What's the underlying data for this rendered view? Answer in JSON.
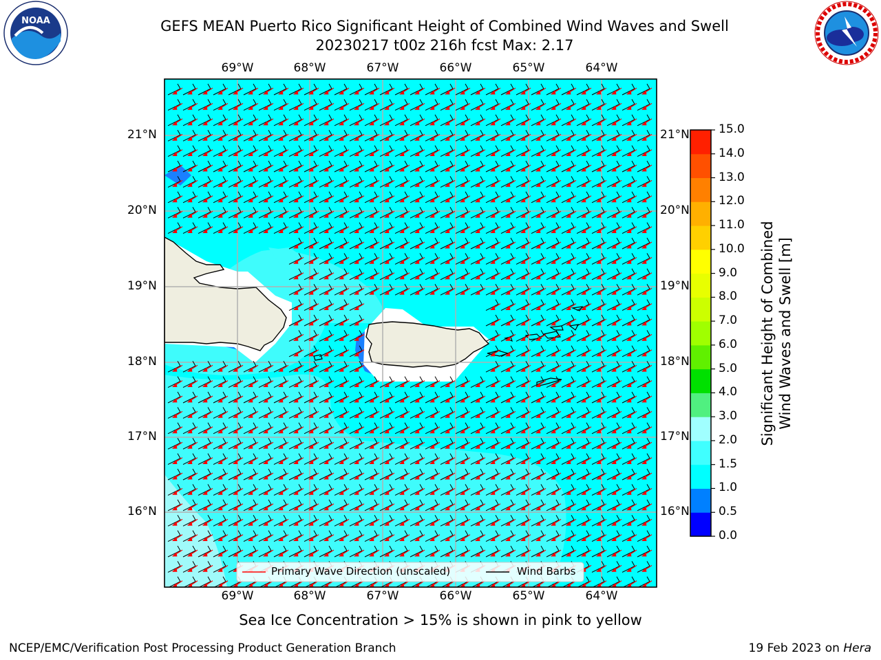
{
  "header": {
    "title_line1": "GEFS MEAN Puerto Rico Significant Height of Combined Wind Waves and Swell",
    "title_line2": "20230217 t00z 216h fcst   Max: 2.17"
  },
  "logos": {
    "left": {
      "name": "NOAA",
      "text": "NOAA",
      "ring_text": "NATIONAL OCEANIC AND ATMOSPHERIC ADMINISTRATION · U.S. DEPARTMENT OF COMMERCE"
    },
    "right": {
      "name": "National Weather Service",
      "ring_text": "NATIONAL WEATHER SERVICE"
    }
  },
  "map": {
    "lon_labels": [
      "69°W",
      "68°W",
      "67°W",
      "66°W",
      "65°W",
      "64°W"
    ],
    "lat_labels": [
      "21°N",
      "20°N",
      "19°N",
      "18°N",
      "17°N",
      "16°N"
    ],
    "colors": {
      "ocean": "#00ffff",
      "band_1_5_2": "#3ffcfc",
      "band_2_2_5": "#a0fafa",
      "band_0_5_1": "#1a80ff",
      "land": "#efeee0",
      "wave_arrows": "#ff0000",
      "wind_barbs": "#000000",
      "grid": "#b0b0b0"
    },
    "legend": {
      "wave": "Primary Wave Direction (unscaled)",
      "wind": "Wind Barbs"
    },
    "note": "Sea Ice Concentration > 15% is shown in pink to yellow"
  },
  "colorbar": {
    "label_line1": "Significant Height of Combined",
    "label_line2": "Wind Waves and Swell [m]",
    "ticks": [
      "0.0",
      "0.5",
      "1.0",
      "1.5",
      "2.0",
      "3.0",
      "4.0",
      "5.0",
      "6.0",
      "7.0",
      "8.0",
      "9.0",
      "10.0",
      "11.0",
      "12.0",
      "13.0",
      "14.0",
      "15.0"
    ],
    "colors": [
      "#0000ff",
      "#0080ff",
      "#00ffff",
      "#40ffff",
      "#a0ffff",
      "#50f080",
      "#00e000",
      "#60f000",
      "#a0ff00",
      "#ccff00",
      "#e8ff00",
      "#ffff00",
      "#ffd000",
      "#ffb000",
      "#ff8000",
      "#ff5000",
      "#ff2000"
    ]
  },
  "footer": {
    "left": "NCEP/EMC/Verification Post Processing Product Generation Branch",
    "right_prefix": "19 Feb 2023 on ",
    "right_machine": "Hera"
  }
}
